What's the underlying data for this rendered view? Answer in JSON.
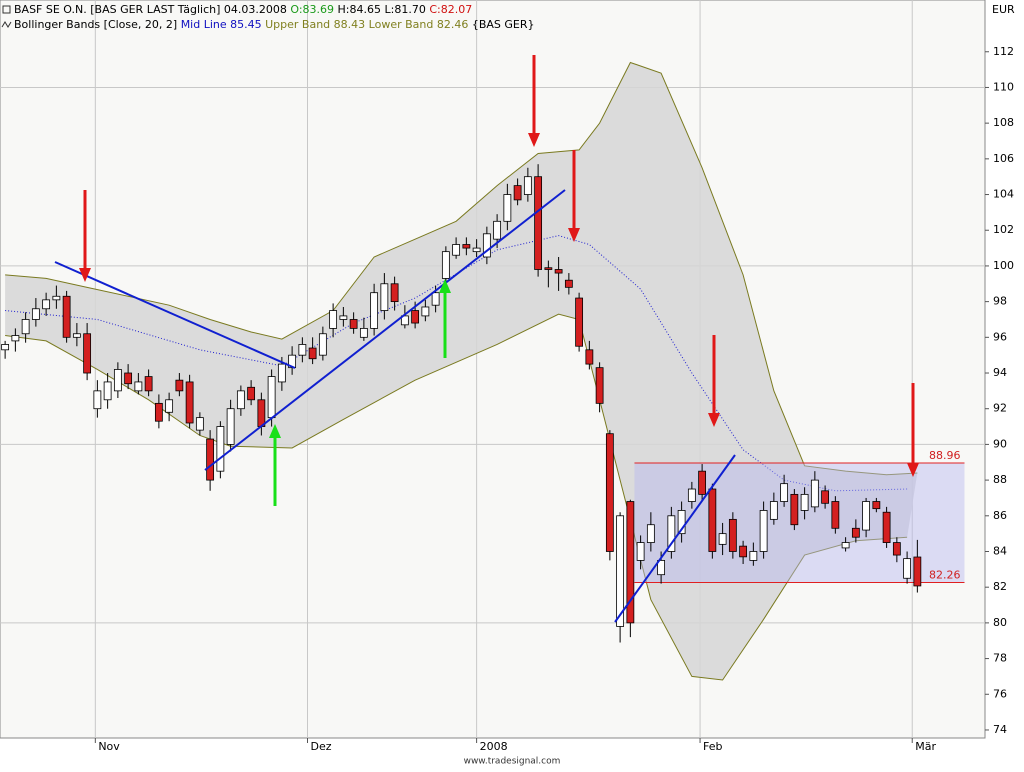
{
  "chart_data": {
    "type": "candlestick",
    "header": {
      "title": "BASF SE O.N. [BAS GER LAST Täglich] 04.03.2008",
      "ohlc": [
        {
          "text": "O:83.69",
          "color": "#1a9a1a"
        },
        {
          "text": "H:84.65",
          "color": "#000000"
        },
        {
          "text": "L:81.70",
          "color": "#000000"
        },
        {
          "text": "C:82.07",
          "color": "#d01010"
        }
      ]
    },
    "indicator": {
      "title": "Bollinger Bands [Close, 20, 2]",
      "items": [
        {
          "text": "Mid Line 85.45",
          "color": "#1010c0"
        },
        {
          "text": "Upper Band 88.43",
          "color": "#808020"
        },
        {
          "text": "Lower Band 82.46",
          "color": "#808020"
        },
        {
          "text": "{BAS GER}",
          "color": "#000000"
        }
      ]
    },
    "y_unit": "EUR",
    "source": "www.tradesignal.com",
    "xlim": [
      -0.5,
      95.6
    ],
    "xticks": [
      {
        "value": 8.8,
        "label": "Nov"
      },
      {
        "value": 29.5,
        "label": "Dez"
      },
      {
        "value": 46,
        "label": "2008"
      },
      {
        "value": 67.8,
        "label": "Feb"
      },
      {
        "value": 88.5,
        "label": "Mär"
      }
    ],
    "ylim": [
      73.55,
      114.9
    ],
    "yticks": [
      74,
      76,
      78,
      80,
      82,
      84,
      86,
      88,
      90,
      92,
      94,
      96,
      98,
      100,
      102,
      104,
      106,
      108,
      110,
      112
    ],
    "ygrid": [
      80,
      90,
      100,
      110
    ],
    "up_color": "#ffffff",
    "down_color": "#d42020",
    "open": [
      95.3,
      95.8,
      96.2,
      97.0,
      97.6,
      98.1,
      98.3,
      96.0,
      96.2,
      92.0,
      92.5,
      93.0,
      94.0,
      93.0,
      93.8,
      92.3,
      91.8,
      93.6,
      93.5,
      90.8,
      90.3,
      88.5,
      90.0,
      92.0,
      93.2,
      92.5,
      91.5,
      93.5,
      94.3,
      95.0,
      95.4,
      95.0,
      96.5,
      97.0,
      97.0,
      96.0,
      96.5,
      97.5,
      99.0,
      96.7,
      97.5,
      97.2,
      97.8,
      99.3,
      100.6,
      101.2,
      100.8,
      100.5,
      101.5,
      102.5,
      104.5,
      104.0,
      105.0,
      99.9,
      99.8,
      99.2,
      98.2,
      95.3,
      94.3,
      90.6,
      79.8,
      86.8,
      83.5,
      84.5,
      82.7,
      84.0,
      85.0,
      86.8,
      88.5,
      87.5,
      84.4,
      85.8,
      84.3,
      83.5,
      84.0,
      85.8,
      86.8,
      87.2,
      86.3,
      86.5,
      87.4,
      86.8,
      84.2,
      85.3,
      85.2,
      86.8,
      86.2,
      84.5,
      82.5,
      83.69
    ],
    "high": [
      95.8,
      96.5,
      97.4,
      98.2,
      98.5,
      98.9,
      98.6,
      96.8,
      96.8,
      93.6,
      94.0,
      94.6,
      94.5,
      94.0,
      94.2,
      92.8,
      92.9,
      94.0,
      93.9,
      91.8,
      90.8,
      91.3,
      92.5,
      93.3,
      93.6,
      92.9,
      94.2,
      94.9,
      95.5,
      96.0,
      96.0,
      96.6,
      97.9,
      97.7,
      97.4,
      97.1,
      99.0,
      99.6,
      99.4,
      97.8,
      98.0,
      98.1,
      98.9,
      101.1,
      101.6,
      101.6,
      101.5,
      102.2,
      102.9,
      104.6,
      104.9,
      105.5,
      105.7,
      100.3,
      100.5,
      99.6,
      98.5,
      95.8,
      94.6,
      90.8,
      86.2,
      86.9,
      84.9,
      86.2,
      84.0,
      86.5,
      86.8,
      87.9,
      88.9,
      87.8,
      85.6,
      86.2,
      84.6,
      84.5,
      86.8,
      87.3,
      88.3,
      87.5,
      87.6,
      88.5,
      87.7,
      87.1,
      84.8,
      85.8,
      87.0,
      87.0,
      86.5,
      84.8,
      84.0,
      84.65
    ],
    "low": [
      94.8,
      95.2,
      95.7,
      96.6,
      97.2,
      97.6,
      95.7,
      95.5,
      93.6,
      91.5,
      92.0,
      92.6,
      93.1,
      92.8,
      92.7,
      90.9,
      91.3,
      92.7,
      90.9,
      90.5,
      87.4,
      88.1,
      89.6,
      91.6,
      92.2,
      90.5,
      91.0,
      93.0,
      93.9,
      94.6,
      94.5,
      94.7,
      96.0,
      96.6,
      96.2,
      95.8,
      96.1,
      97.0,
      97.5,
      96.5,
      96.5,
      96.9,
      97.4,
      99.0,
      100.4,
      100.6,
      100.5,
      100.1,
      101.0,
      102.0,
      103.4,
      103.6,
      99.4,
      98.8,
      98.6,
      98.4,
      95.2,
      94.2,
      91.8,
      83.5,
      78.9,
      79.2,
      83.0,
      84.0,
      82.2,
      83.6,
      84.5,
      86.4,
      86.8,
      83.6,
      83.8,
      83.6,
      83.3,
      83.2,
      83.6,
      85.5,
      86.5,
      85.2,
      85.8,
      86.2,
      86.4,
      85.0,
      84.0,
      84.5,
      84.8,
      86.2,
      84.2,
      83.4,
      82.2,
      81.7
    ],
    "close": [
      95.6,
      96.1,
      97.0,
      97.6,
      98.1,
      98.3,
      96.0,
      96.2,
      94.0,
      93.0,
      93.5,
      94.2,
      93.4,
      93.5,
      93.0,
      91.3,
      92.5,
      93.0,
      91.2,
      91.5,
      88.0,
      91.0,
      92.0,
      93.0,
      92.5,
      91.0,
      93.8,
      94.5,
      95.0,
      95.6,
      94.8,
      96.2,
      97.5,
      97.2,
      96.5,
      96.5,
      98.5,
      99.0,
      98.0,
      97.2,
      96.8,
      97.7,
      98.5,
      100.8,
      101.2,
      101.0,
      101.0,
      101.8,
      102.5,
      104.0,
      103.7,
      105.0,
      99.8,
      99.8,
      99.6,
      98.8,
      95.5,
      94.5,
      92.3,
      84.0,
      86.0,
      80.0,
      84.5,
      85.5,
      83.5,
      86.0,
      86.3,
      87.5,
      87.2,
      84.0,
      85.0,
      84.0,
      83.7,
      84.0,
      86.3,
      86.8,
      87.8,
      85.5,
      87.2,
      88.0,
      86.7,
      85.3,
      84.5,
      84.8,
      86.8,
      86.4,
      84.5,
      83.8,
      83.6,
      82.07
    ],
    "bands": [
      {
        "name": "Upper Band",
        "color": "#7a7a20",
        "x": [
          0,
          4,
          8,
          12,
          16,
          20,
          24,
          27,
          32,
          36,
          40,
          44,
          48,
          52,
          56,
          58,
          61,
          64,
          68,
          72,
          75,
          78,
          82,
          86,
          89
        ],
        "values": [
          99.5,
          99.3,
          98.8,
          98.3,
          97.8,
          97.0,
          96.3,
          95.9,
          97.5,
          100.5,
          101.5,
          102.5,
          104.5,
          106.3,
          106.5,
          108.0,
          111.4,
          110.8,
          105.5,
          99.5,
          93.0,
          88.8,
          88.5,
          88.3,
          88.4
        ]
      },
      {
        "name": "Lower Band",
        "color": "#7a7a20",
        "x": [
          0,
          4,
          9,
          14,
          19,
          22,
          28,
          33,
          40,
          48,
          54,
          56,
          58,
          60,
          63,
          67,
          70,
          74,
          78,
          83,
          88
        ],
        "values": [
          96.1,
          95.8,
          94.2,
          92.5,
          90.5,
          89.9,
          89.8,
          91.4,
          93.6,
          95.6,
          97.3,
          97.0,
          92.5,
          88.0,
          81.3,
          77.0,
          76.8,
          80.2,
          83.8,
          84.6,
          84.8
        ]
      },
      {
        "name": "Mid Line",
        "color": "#2020d0",
        "x": [
          0,
          9,
          19,
          27,
          34,
          40,
          48,
          54,
          57,
          62,
          67,
          72,
          76,
          81,
          88
        ],
        "values": [
          97.5,
          97.0,
          95.3,
          94.4,
          96.8,
          98.2,
          100.9,
          101.7,
          101.2,
          98.7,
          94.0,
          89.7,
          88.0,
          87.4,
          87.5
        ]
      }
    ],
    "range_box": {
      "x": [
        61.4,
        93.6
      ],
      "levels": [
        88.96,
        82.26
      ]
    }
  }
}
